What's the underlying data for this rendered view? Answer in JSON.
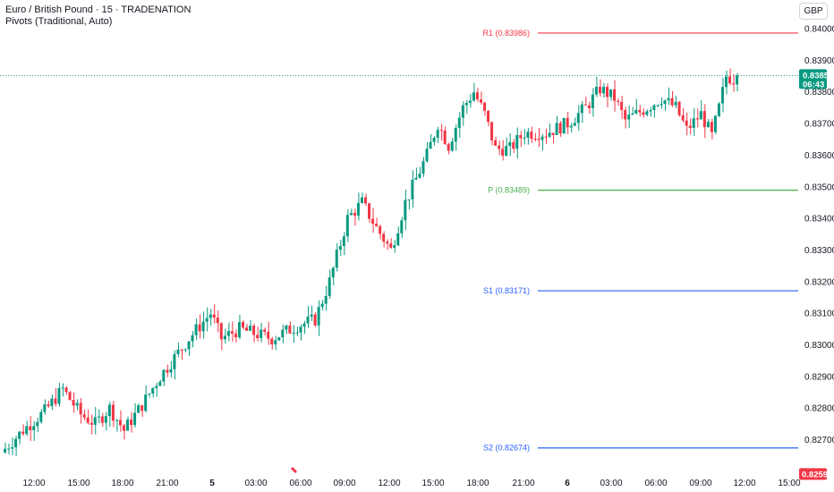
{
  "header": {
    "title": "Euro / British Pound · 15 · TRADENATION",
    "indicator": "Pivots (Traditional, Auto)"
  },
  "currency_button": "GBP",
  "colors": {
    "up": "#089981",
    "down": "#f23645",
    "r1": "#f23645",
    "p": "#4caf50",
    "s": "#2962ff",
    "current_line": "#089981"
  },
  "price_labels": {
    "current_price": "0.83852",
    "countdown": "06:43",
    "low_marker": "0.82593"
  },
  "chart_data": {
    "type": "candlestick",
    "title": "Euro / British Pound · 15 · TRADENATION",
    "xlabel": "",
    "ylabel": "",
    "ylim": [
      0.8262,
      0.8404
    ],
    "y_ticks": [
      "0.84000",
      "0.83900",
      "0.83800",
      "0.83700",
      "0.83600",
      "0.83500",
      "0.83400",
      "0.83300",
      "0.83200",
      "0.83100",
      "0.83000",
      "0.82900",
      "0.82800",
      "0.82700"
    ],
    "x_ticks": [
      "12:00",
      "15:00",
      "18:00",
      "21:00",
      "5",
      "03:00",
      "06:00",
      "09:00",
      "12:00",
      "15:00",
      "18:00",
      "21:00",
      "6",
      "03:00",
      "06:00",
      "09:00",
      "12:00",
      "15:00"
    ],
    "pivots": [
      {
        "name": "R1",
        "label": "R1 (0.83986)",
        "value": 0.83986
      },
      {
        "name": "P",
        "label": "P (0.83489)",
        "value": 0.83489
      },
      {
        "name": "S1",
        "label": "S1 (0.83171)",
        "value": 0.83171
      },
      {
        "name": "S2",
        "label": "S2 (0.82674)",
        "value": 0.82674
      }
    ],
    "current_price": 0.83852,
    "waypoints": [
      [
        0,
        0.8266
      ],
      [
        6,
        0.8273
      ],
      [
        12,
        0.8279
      ],
      [
        17,
        0.8286
      ],
      [
        22,
        0.8278
      ],
      [
        26,
        0.8275
      ],
      [
        30,
        0.828
      ],
      [
        34,
        0.8273
      ],
      [
        39,
        0.8281
      ],
      [
        44,
        0.829
      ],
      [
        52,
        0.8302
      ],
      [
        58,
        0.831
      ],
      [
        61,
        0.8302
      ],
      [
        66,
        0.8305
      ],
      [
        75,
        0.8302
      ],
      [
        82,
        0.8306
      ],
      [
        87,
        0.8308
      ],
      [
        91,
        0.832
      ],
      [
        96,
        0.834
      ],
      [
        100,
        0.8345
      ],
      [
        104,
        0.8337
      ],
      [
        108,
        0.833
      ],
      [
        112,
        0.8345
      ],
      [
        118,
        0.836
      ],
      [
        121,
        0.837
      ],
      [
        124,
        0.8363
      ],
      [
        128,
        0.8375
      ],
      [
        131,
        0.838
      ],
      [
        134,
        0.8373
      ],
      [
        137,
        0.8362
      ],
      [
        141,
        0.8362
      ],
      [
        145,
        0.8367
      ],
      [
        151,
        0.8367
      ],
      [
        157,
        0.837
      ],
      [
        162,
        0.8375
      ],
      [
        166,
        0.8381
      ],
      [
        170,
        0.8378
      ],
      [
        173,
        0.8371
      ],
      [
        179,
        0.8375
      ],
      [
        183,
        0.8378
      ],
      [
        187,
        0.8375
      ],
      [
        190,
        0.8368
      ],
      [
        194,
        0.8373
      ],
      [
        197,
        0.8366
      ],
      [
        199,
        0.8375
      ],
      [
        201,
        0.8385
      ],
      [
        203,
        0.8384
      ]
    ]
  }
}
